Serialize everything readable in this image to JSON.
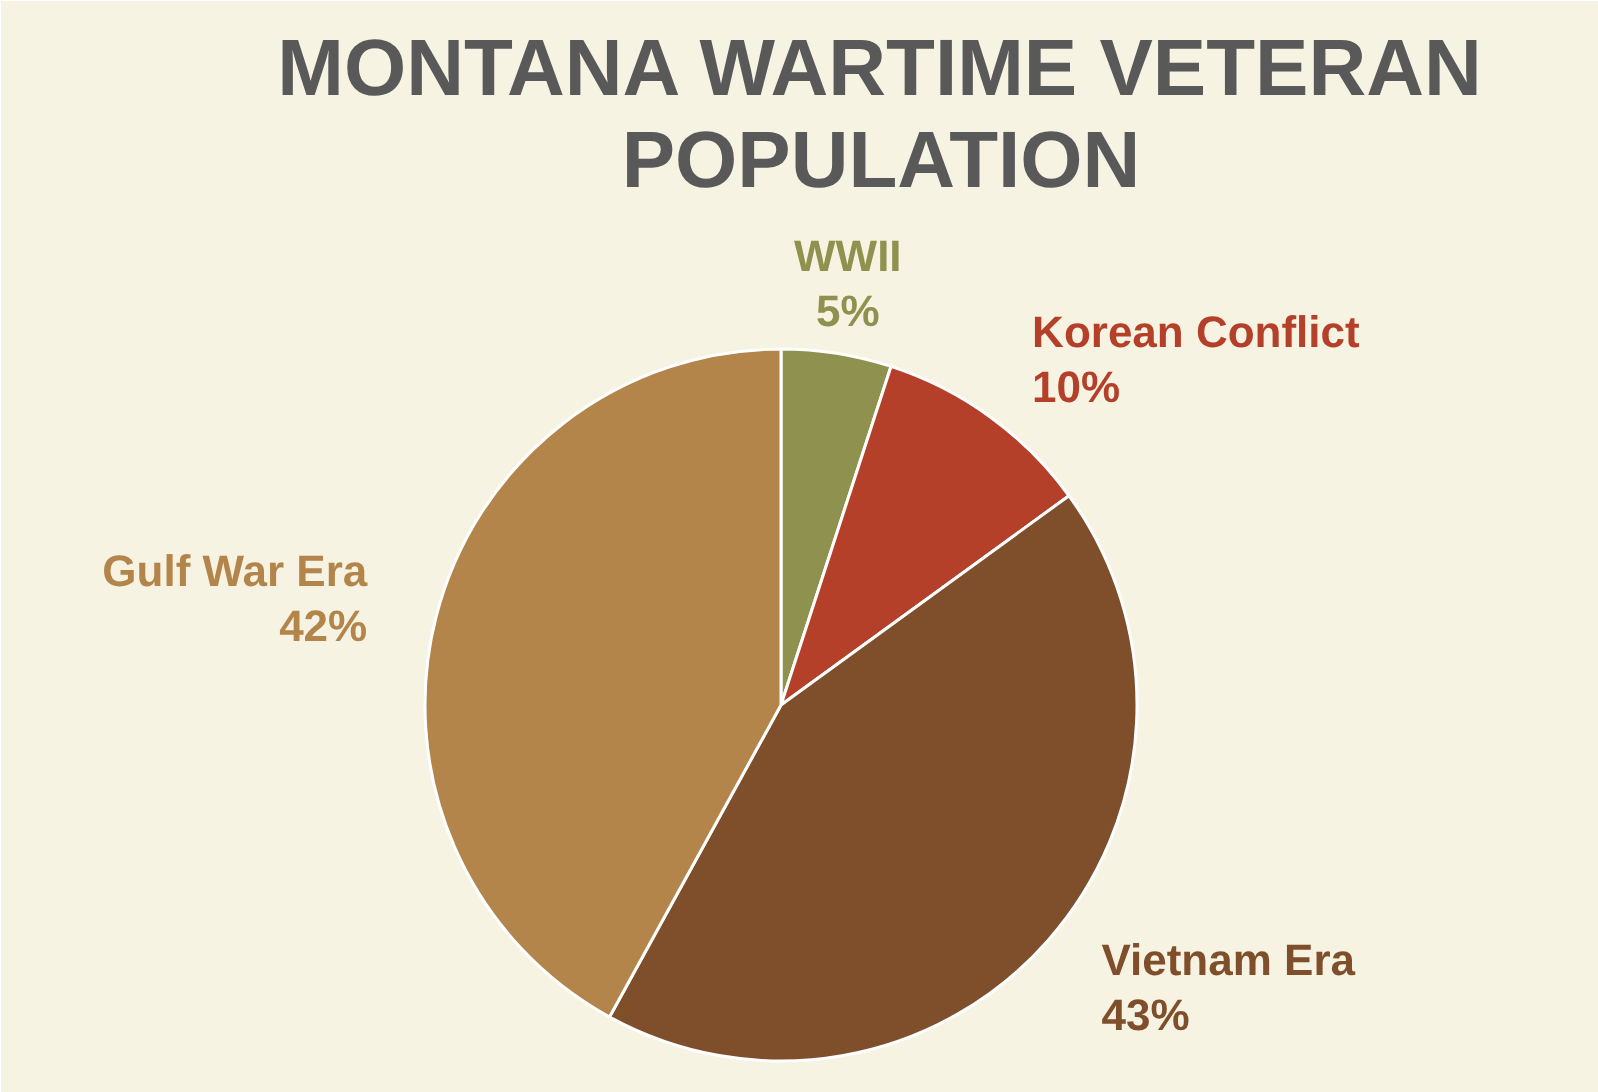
{
  "chart_data": {
    "type": "pie",
    "title": "MONTANA WARTIME VETERAN POPULATION",
    "categories": [
      "WWII",
      "Korean Conflict",
      "Vietnam Era",
      "Gulf War Era"
    ],
    "values": [
      5,
      10,
      43,
      42
    ],
    "colors": [
      "#8f914e",
      "#b5402a",
      "#7f4f2c",
      "#b3854a"
    ],
    "value_labels": [
      "5%",
      "10%",
      "43%",
      "42%"
    ]
  }
}
